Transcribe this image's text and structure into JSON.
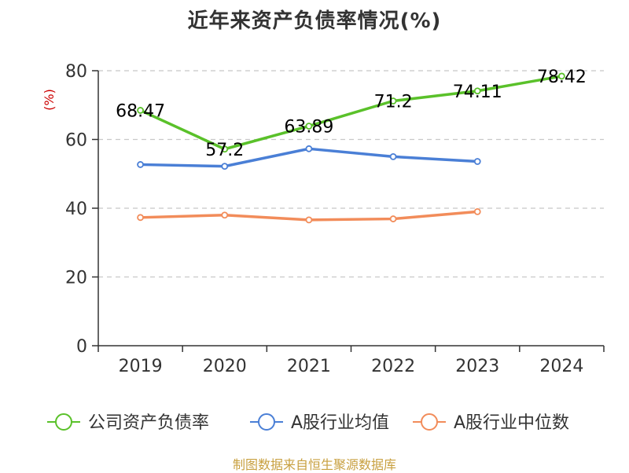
{
  "page": {
    "title": "近年来资产负债率情况(%)",
    "source": "制图数据来自恒生聚源数据库"
  },
  "chart_data": {
    "type": "line",
    "title": "近年来资产负债率情况(%)",
    "xlabel": "",
    "ylabel": "(%)",
    "categories": [
      "2019",
      "2020",
      "2021",
      "2022",
      "2023",
      "2024"
    ],
    "ylim": [
      0,
      80
    ],
    "yticks": [
      "0",
      "20",
      "40",
      "60",
      "80"
    ],
    "grid": true,
    "legend_position": "bottom",
    "series": [
      {
        "name": "公司资产负债率",
        "color": "#5ac12a",
        "values": [
          68.47,
          57.2,
          63.89,
          71.2,
          74.11,
          78.42
        ],
        "labels": [
          "68.47",
          "57.2",
          "63.89",
          "71.2",
          "74.11",
          "78.42"
        ]
      },
      {
        "name": "A股行业均值",
        "color": "#4a7fd6",
        "values": [
          52.7,
          52.2,
          57.3,
          55.0,
          53.6,
          null
        ]
      },
      {
        "name": "A股行业中位数",
        "color": "#f28c5a",
        "values": [
          37.3,
          38.0,
          36.6,
          36.9,
          39.0,
          null
        ]
      }
    ]
  }
}
